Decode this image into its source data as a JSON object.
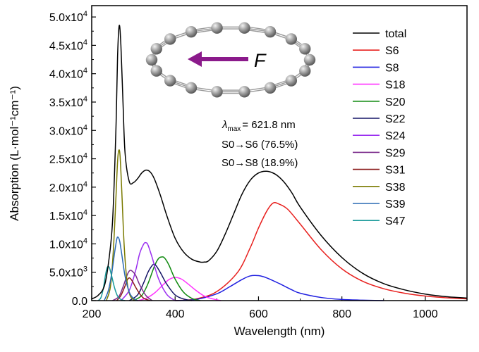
{
  "chart_data": {
    "type": "line",
    "xlabel": "Wavelength (nm)",
    "ylabel": "Absorption (L·mol⁻¹cm⁻¹)",
    "xlim": [
      200,
      1100
    ],
    "ylim": [
      0,
      52000
    ],
    "xticks": [
      200,
      400,
      600,
      800,
      1000
    ],
    "yticks": [
      {
        "value": 0,
        "mant": "0.0",
        "exp": ""
      },
      {
        "value": 5000,
        "mant": "5.0x10",
        "exp": "3"
      },
      {
        "value": 10000,
        "mant": "1.0x10",
        "exp": "4"
      },
      {
        "value": 15000,
        "mant": "1.5x10",
        "exp": "4"
      },
      {
        "value": 20000,
        "mant": "2.0x10",
        "exp": "4"
      },
      {
        "value": 25000,
        "mant": "2.5x10",
        "exp": "4"
      },
      {
        "value": 30000,
        "mant": "3.0x10",
        "exp": "4"
      },
      {
        "value": 35000,
        "mant": "3.5x10",
        "exp": "4"
      },
      {
        "value": 40000,
        "mant": "4.0x10",
        "exp": "4"
      },
      {
        "value": 45000,
        "mant": "4.5x10",
        "exp": "4"
      },
      {
        "value": 50000,
        "mant": "5.0x10",
        "exp": "4"
      }
    ],
    "series": [
      {
        "name": "total",
        "color": "#000000",
        "x": [
          200,
          215,
          230,
          240,
          250,
          258,
          262,
          266,
          270,
          275,
          280,
          290,
          300,
          310,
          320,
          330,
          340,
          350,
          365,
          380,
          400,
          420,
          440,
          460,
          470,
          480,
          500,
          520,
          540,
          560,
          580,
          600,
          620,
          640,
          660,
          680,
          700,
          750,
          800,
          850,
          900,
          950,
          1000,
          1050,
          1100
        ],
        "y": [
          300,
          900,
          2500,
          6500,
          14000,
          30000,
          43000,
          48500,
          45000,
          35000,
          26000,
          21000,
          20800,
          21500,
          22500,
          23000,
          22700,
          21500,
          18500,
          15000,
          11000,
          8600,
          7300,
          6800,
          6800,
          7000,
          8700,
          11700,
          15200,
          18700,
          21200,
          22500,
          22800,
          22300,
          21000,
          19000,
          16500,
          11500,
          7600,
          4800,
          3000,
          1900,
          1150,
          700,
          450
        ]
      },
      {
        "name": "S6",
        "color": "#e8201e",
        "x": [
          400,
          450,
          500,
          550,
          580,
          600,
          620,
          635,
          650,
          670,
          700,
          750,
          800,
          850,
          900,
          950,
          1000,
          1050,
          1100
        ],
        "y": [
          0,
          300,
          1600,
          5000,
          9300,
          12800,
          15800,
          17200,
          17000,
          16100,
          13500,
          9000,
          5600,
          3400,
          2100,
          1300,
          800,
          500,
          300
        ]
      },
      {
        "name": "S8",
        "color": "#1f1fe0",
        "x": [
          400,
          450,
          500,
          530,
          560,
          580,
          600,
          620,
          650,
          680,
          700,
          750,
          800,
          850,
          900
        ],
        "y": [
          0,
          200,
          1200,
          2400,
          3700,
          4350,
          4400,
          4000,
          3000,
          1900,
          1300,
          550,
          200,
          80,
          0
        ]
      },
      {
        "name": "S18",
        "color": "#ff33ff",
        "x": [
          310,
          330,
          350,
          370,
          385,
          400,
          415,
          430,
          450,
          470,
          490,
          510
        ],
        "y": [
          0,
          400,
          1300,
          2700,
          3700,
          4100,
          3800,
          3000,
          1800,
          800,
          300,
          0
        ]
      },
      {
        "name": "S20",
        "color": "#108a10",
        "x": [
          300,
          320,
          335,
          350,
          360,
          368,
          375,
          385,
          400,
          420,
          440,
          460
        ],
        "y": [
          0,
          900,
          3000,
          6000,
          7400,
          7700,
          7500,
          6300,
          3800,
          1500,
          400,
          0
        ]
      },
      {
        "name": "S22",
        "color": "#141466",
        "x": [
          290,
          310,
          325,
          335,
          345,
          350,
          355,
          365,
          380,
          400,
          420,
          440
        ],
        "y": [
          0,
          1000,
          3200,
          5000,
          6200,
          6400,
          6100,
          4900,
          2900,
          1000,
          300,
          0
        ]
      },
      {
        "name": "S24",
        "color": "#9b2ff0",
        "x": [
          270,
          290,
          305,
          315,
          325,
          330,
          335,
          345,
          360,
          380,
          400
        ],
        "y": [
          0,
          1800,
          5200,
          8300,
          10000,
          10200,
          9800,
          7600,
          3900,
          1100,
          0
        ]
      },
      {
        "name": "S29",
        "color": "#7a2a8a",
        "x": [
          250,
          265,
          275,
          285,
          290,
          295,
          305,
          315,
          330,
          345
        ],
        "y": [
          0,
          700,
          2400,
          4500,
          5200,
          5300,
          4500,
          2800,
          900,
          0
        ]
      },
      {
        "name": "S31",
        "color": "#8b1a1a",
        "x": [
          260,
          270,
          280,
          285,
          290,
          295,
          300,
          305,
          315,
          325,
          340
        ],
        "y": [
          0,
          900,
          2600,
          3600,
          4000,
          3700,
          3100,
          2400,
          1200,
          400,
          0
        ]
      },
      {
        "name": "S38",
        "color": "#7a7a00",
        "x": [
          235,
          245,
          252,
          258,
          262,
          265,
          268,
          272,
          278,
          285,
          292,
          300,
          310
        ],
        "y": [
          0,
          2500,
          9000,
          18000,
          24500,
          26500,
          25500,
          19500,
          9500,
          3200,
          900,
          200,
          0
        ]
      },
      {
        "name": "S39",
        "color": "#2a6ab3",
        "x": [
          230,
          240,
          248,
          255,
          260,
          263,
          267,
          272,
          280,
          290,
          300,
          310
        ],
        "y": [
          0,
          1800,
          4800,
          8500,
          10800,
          11200,
          10500,
          8200,
          4300,
          1500,
          400,
          0
        ]
      },
      {
        "name": "S47",
        "color": "#1a9a9a",
        "x": [
          215,
          222,
          228,
          233,
          237,
          240,
          243,
          248,
          255,
          262,
          270,
          280
        ],
        "y": [
          0,
          500,
          2200,
          4500,
          5800,
          6000,
          5700,
          4300,
          2200,
          800,
          200,
          0
        ]
      }
    ],
    "annotations": {
      "lambda_symbol": "λ",
      "lambda_sub": "max",
      "lambda_value": "= 621.8 nm",
      "transition_1": "S0→S6 (76.5%)",
      "transition_2": "S0→S8 (18.9%)",
      "force_label": "F",
      "force_color": "#8b1a8b"
    }
  }
}
